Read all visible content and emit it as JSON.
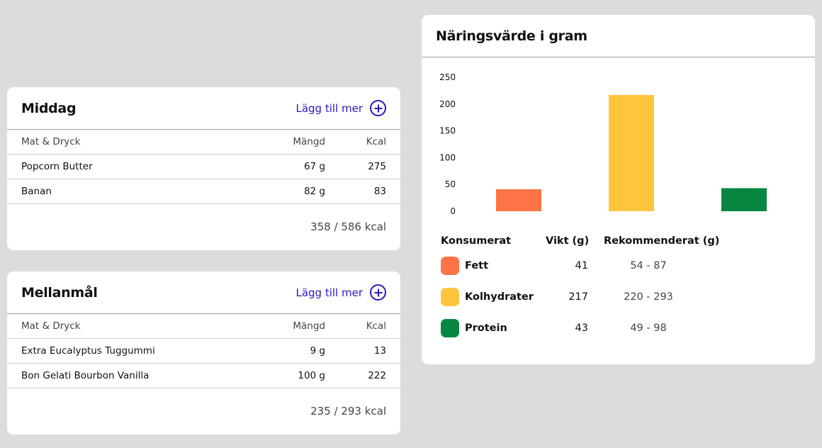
{
  "meals": [
    {
      "title": "Middag",
      "add_label": "Lägg till mer",
      "headers": {
        "name": "Mat & Dryck",
        "amount": "Mängd",
        "kcal": "Kcal"
      },
      "items": [
        {
          "name": "Popcorn Butter",
          "amount": "67 g",
          "kcal": "275"
        },
        {
          "name": "Banan",
          "amount": "82 g",
          "kcal": "83"
        }
      ],
      "total": "358 / 586 kcal"
    },
    {
      "title": "Mellanmål",
      "add_label": "Lägg till mer",
      "headers": {
        "name": "Mat & Dryck",
        "amount": "Mängd",
        "kcal": "Kcal"
      },
      "items": [
        {
          "name": "Extra Eucalyptus Tuggummi",
          "amount": "9 g",
          "kcal": "13"
        },
        {
          "name": "Bon Gelati Bourbon Vanilla",
          "amount": "100 g",
          "kcal": "222"
        }
      ],
      "total": "235 / 293 kcal"
    }
  ],
  "nutrition": {
    "title": "Näringsvärde i gram",
    "table_headers": {
      "consumed": "Konsumerat",
      "weight": "Vikt (g)",
      "recommended": "Rekommenderat (g)"
    },
    "rows": [
      {
        "label": "Fett",
        "weight": "41",
        "recommended": "54 - 87",
        "color": "#ff7347"
      },
      {
        "label": "Kolhydrater",
        "weight": "217",
        "recommended": "220 - 293",
        "color": "#ffc53d"
      },
      {
        "label": "Protein",
        "weight": "43",
        "recommended": "49 - 98",
        "color": "#078641"
      }
    ]
  },
  "chart_data": {
    "type": "bar",
    "categories": [
      "Fett",
      "Kolhydrater",
      "Protein"
    ],
    "values": [
      41,
      217,
      43
    ],
    "colors": [
      "#ff7347",
      "#ffc53d",
      "#078641"
    ],
    "ylim": [
      0,
      250
    ],
    "yticks": [
      0,
      50,
      100,
      150,
      200,
      250
    ],
    "grid": false,
    "title": "",
    "xlabel": "",
    "ylabel": ""
  },
  "icons": {
    "add": "plus-circle-icon"
  }
}
